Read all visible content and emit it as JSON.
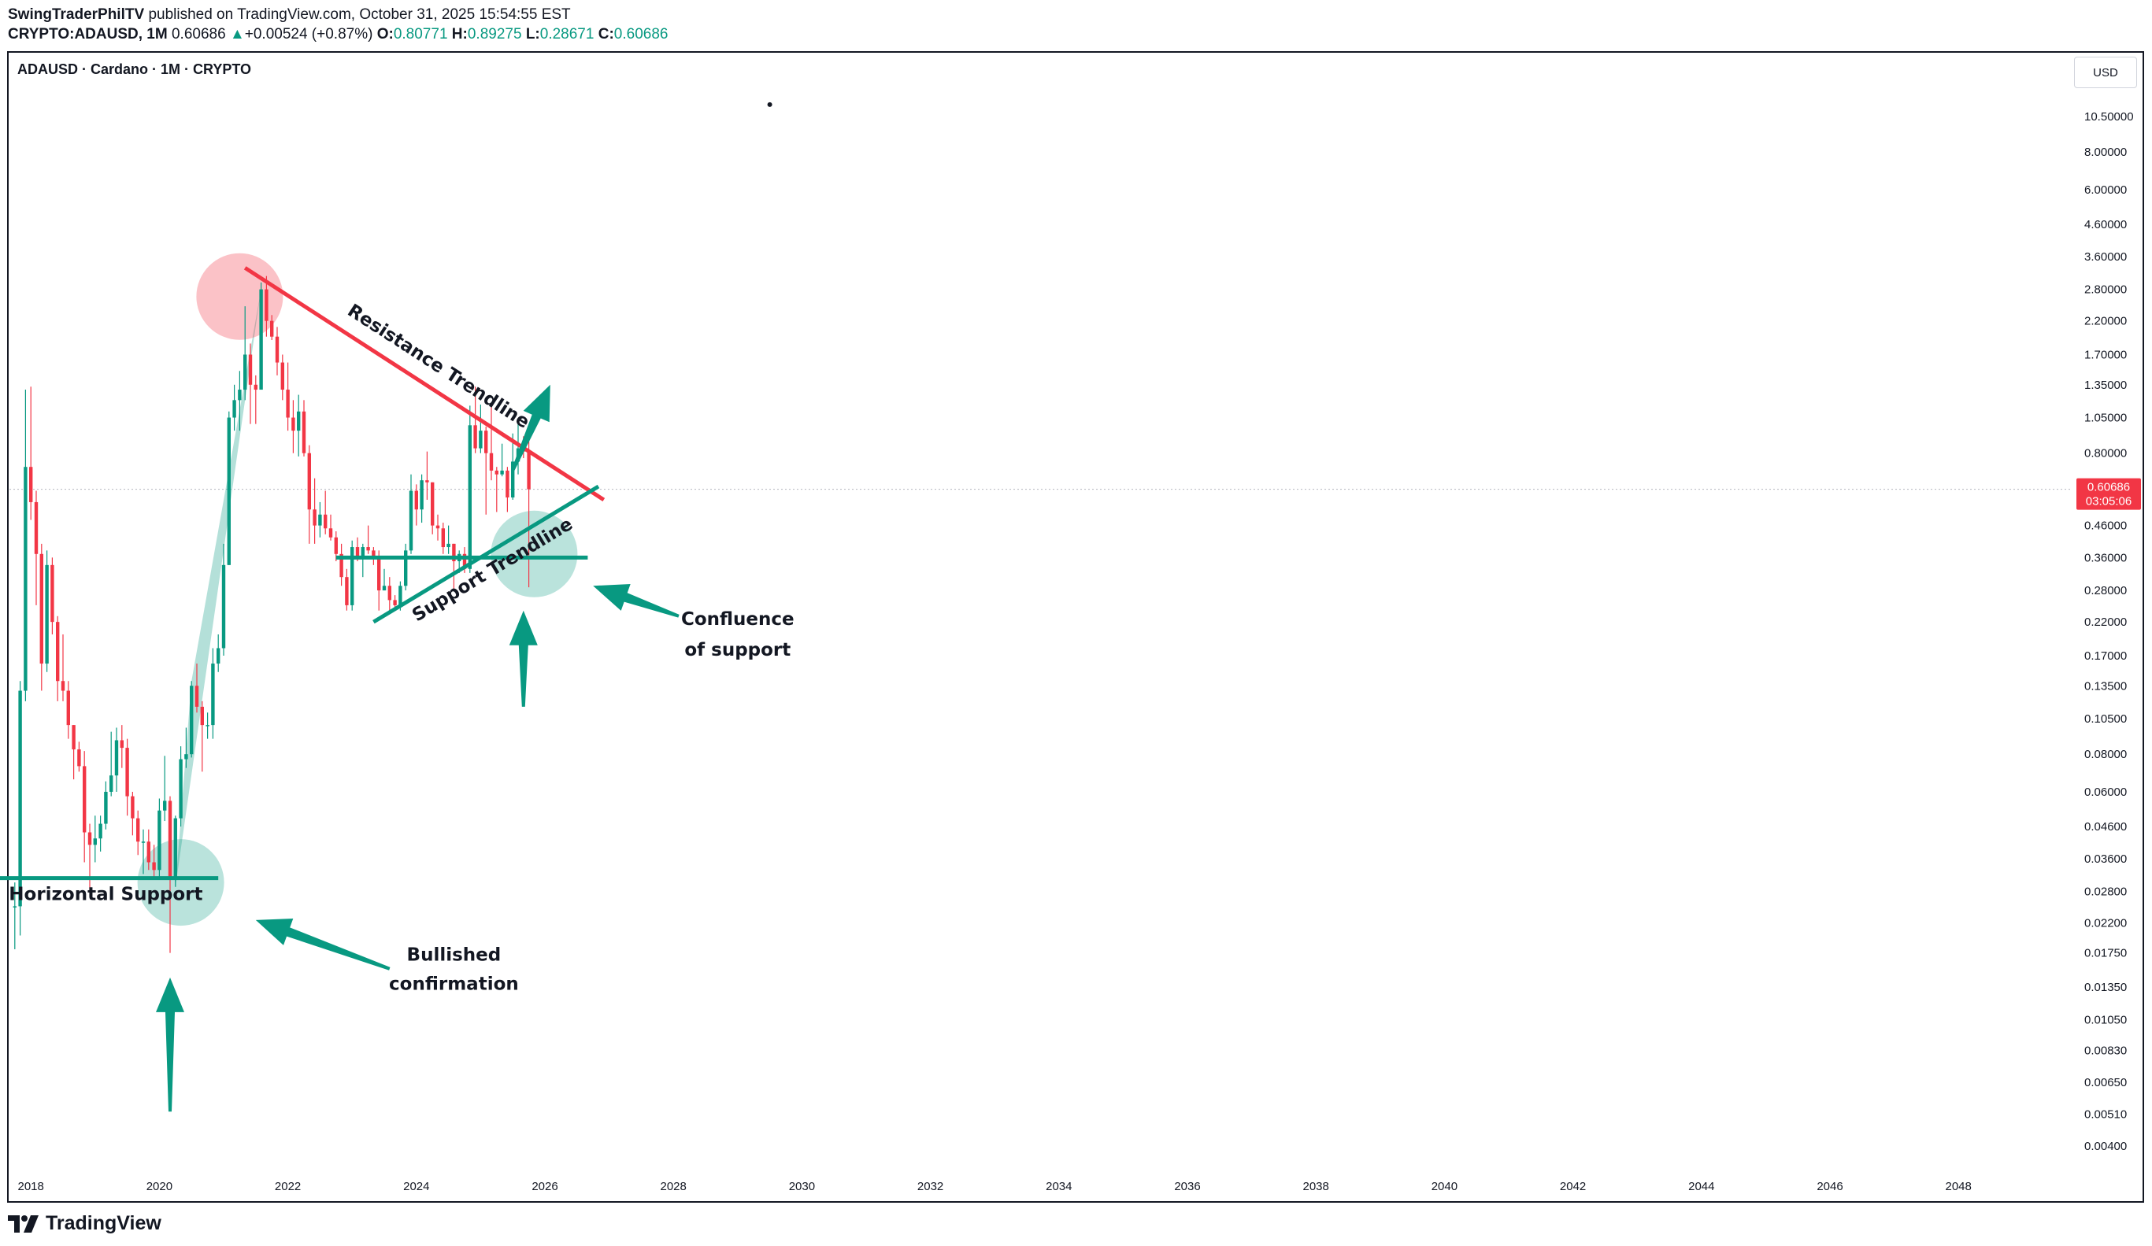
{
  "header": {
    "author": "SwingTraderPhilTV",
    "published": "published on TradingView.com, October 31, 2025 15:54:55 EST",
    "symbol": "CRYPTO:ADAUSD, 1M",
    "last_price": "0.60686",
    "change_arrow": "▲",
    "change": "+0.00524 (+0.87%)",
    "open_label": "O:",
    "open": "0.80771",
    "high_label": "H:",
    "high": "0.89275",
    "low_label": "L:",
    "low": "0.28671",
    "close_label": "C:",
    "close": "0.60686"
  },
  "chart_title": "ADAUSD · Cardano · 1M · CRYPTO",
  "currency_button": "USD",
  "footer": {
    "logo_text": "TradingView",
    "logo_icon": "tradingview-logo-icon"
  },
  "colors": {
    "up": "#089981",
    "down": "#f23645",
    "teal": "#089981",
    "red": "#f23645"
  },
  "chart_data": {
    "type": "candlestick",
    "title": "ADAUSD · Cardano · 1M · CRYPTO",
    "y_scale": "log",
    "ylim": [
      0.0035,
      17
    ],
    "x_range": [
      "2017-09",
      "2049-10"
    ],
    "x_ticks": [
      "2018",
      "2020",
      "2022",
      "2024",
      "2026",
      "2028",
      "2030",
      "2032",
      "2034",
      "2036",
      "2038",
      "2040",
      "2042",
      "2044",
      "2046",
      "2048"
    ],
    "y_ticks": [
      "10.50000",
      "8.00000",
      "6.00000",
      "4.60000",
      "3.60000",
      "2.80000",
      "2.20000",
      "1.70000",
      "1.35000",
      "1.05000",
      "0.80000",
      "0.46000",
      "0.36000",
      "0.28000",
      "0.22000",
      "0.17000",
      "0.13500",
      "0.10500",
      "0.08000",
      "0.06000",
      "0.04600",
      "0.03600",
      "0.02800",
      "0.02200",
      "0.01750",
      "0.01350",
      "0.01050",
      "0.00830",
      "0.00650",
      "0.00510",
      "0.00400"
    ],
    "current_price": {
      "value": "0.60686",
      "countdown": "03:05:06"
    },
    "candles": [
      {
        "d": "2017-10",
        "o": 0.025,
        "h": 0.03,
        "l": 0.018,
        "c": 0.025
      },
      {
        "d": "2017-11",
        "o": 0.025,
        "h": 0.14,
        "l": 0.02,
        "c": 0.13
      },
      {
        "d": "2017-12",
        "o": 0.13,
        "h": 1.3,
        "l": 0.12,
        "c": 0.72
      },
      {
        "d": "2018-01",
        "o": 0.72,
        "h": 1.33,
        "l": 0.48,
        "c": 0.55
      },
      {
        "d": "2018-02",
        "o": 0.55,
        "h": 0.6,
        "l": 0.25,
        "c": 0.37
      },
      {
        "d": "2018-03",
        "o": 0.37,
        "h": 0.4,
        "l": 0.13,
        "c": 0.16
      },
      {
        "d": "2018-04",
        "o": 0.16,
        "h": 0.38,
        "l": 0.15,
        "c": 0.34
      },
      {
        "d": "2018-05",
        "o": 0.34,
        "h": 0.36,
        "l": 0.2,
        "c": 0.22
      },
      {
        "d": "2018-06",
        "o": 0.22,
        "h": 0.23,
        "l": 0.12,
        "c": 0.14
      },
      {
        "d": "2018-07",
        "o": 0.14,
        "h": 0.2,
        "l": 0.12,
        "c": 0.13
      },
      {
        "d": "2018-08",
        "o": 0.13,
        "h": 0.14,
        "l": 0.09,
        "c": 0.1
      },
      {
        "d": "2018-09",
        "o": 0.1,
        "h": 0.1,
        "l": 0.066,
        "c": 0.083
      },
      {
        "d": "2018-10",
        "o": 0.083,
        "h": 0.088,
        "l": 0.07,
        "c": 0.073
      },
      {
        "d": "2018-11",
        "o": 0.073,
        "h": 0.082,
        "l": 0.035,
        "c": 0.044
      },
      {
        "d": "2018-12",
        "o": 0.044,
        "h": 0.047,
        "l": 0.028,
        "c": 0.04
      },
      {
        "d": "2019-01",
        "o": 0.04,
        "h": 0.05,
        "l": 0.035,
        "c": 0.042
      },
      {
        "d": "2019-02",
        "o": 0.042,
        "h": 0.05,
        "l": 0.038,
        "c": 0.047
      },
      {
        "d": "2019-03",
        "o": 0.047,
        "h": 0.065,
        "l": 0.045,
        "c": 0.06
      },
      {
        "d": "2019-04",
        "o": 0.06,
        "h": 0.095,
        "l": 0.058,
        "c": 0.068
      },
      {
        "d": "2019-05",
        "o": 0.068,
        "h": 0.098,
        "l": 0.06,
        "c": 0.089
      },
      {
        "d": "2019-06",
        "o": 0.089,
        "h": 0.1,
        "l": 0.072,
        "c": 0.084
      },
      {
        "d": "2019-07",
        "o": 0.084,
        "h": 0.09,
        "l": 0.05,
        "c": 0.058
      },
      {
        "d": "2019-08",
        "o": 0.058,
        "h": 0.06,
        "l": 0.043,
        "c": 0.049
      },
      {
        "d": "2019-09",
        "o": 0.049,
        "h": 0.052,
        "l": 0.037,
        "c": 0.041
      },
      {
        "d": "2019-10",
        "o": 0.041,
        "h": 0.045,
        "l": 0.032,
        "c": 0.041
      },
      {
        "d": "2019-11",
        "o": 0.041,
        "h": 0.045,
        "l": 0.033,
        "c": 0.035
      },
      {
        "d": "2019-12",
        "o": 0.035,
        "h": 0.04,
        "l": 0.031,
        "c": 0.033
      },
      {
        "d": "2020-01",
        "o": 0.033,
        "h": 0.057,
        "l": 0.031,
        "c": 0.052
      },
      {
        "d": "2020-02",
        "o": 0.052,
        "h": 0.079,
        "l": 0.048,
        "c": 0.056
      },
      {
        "d": "2020-03",
        "o": 0.056,
        "h": 0.058,
        "l": 0.0175,
        "c": 0.031
      },
      {
        "d": "2020-04",
        "o": 0.031,
        "h": 0.05,
        "l": 0.029,
        "c": 0.049
      },
      {
        "d": "2020-05",
        "o": 0.049,
        "h": 0.085,
        "l": 0.046,
        "c": 0.077
      },
      {
        "d": "2020-06",
        "o": 0.077,
        "h": 0.098,
        "l": 0.072,
        "c": 0.08
      },
      {
        "d": "2020-07",
        "o": 0.08,
        "h": 0.14,
        "l": 0.078,
        "c": 0.135
      },
      {
        "d": "2020-08",
        "o": 0.135,
        "h": 0.16,
        "l": 0.11,
        "c": 0.115
      },
      {
        "d": "2020-09",
        "o": 0.115,
        "h": 0.12,
        "l": 0.07,
        "c": 0.1
      },
      {
        "d": "2020-10",
        "o": 0.1,
        "h": 0.11,
        "l": 0.09,
        "c": 0.1
      },
      {
        "d": "2020-11",
        "o": 0.1,
        "h": 0.18,
        "l": 0.09,
        "c": 0.16
      },
      {
        "d": "2020-12",
        "o": 0.16,
        "h": 0.2,
        "l": 0.15,
        "c": 0.18
      },
      {
        "d": "2021-01",
        "o": 0.18,
        "h": 0.4,
        "l": 0.17,
        "c": 0.34
      },
      {
        "d": "2021-02",
        "o": 0.34,
        "h": 1.1,
        "l": 0.34,
        "c": 1.05
      },
      {
        "d": "2021-03",
        "o": 1.05,
        "h": 1.35,
        "l": 0.95,
        "c": 1.2
      },
      {
        "d": "2021-04",
        "o": 1.2,
        "h": 1.5,
        "l": 0.95,
        "c": 1.3
      },
      {
        "d": "2021-05",
        "o": 1.3,
        "h": 2.46,
        "l": 1.2,
        "c": 1.7
      },
      {
        "d": "2021-06",
        "o": 1.7,
        "h": 1.85,
        "l": 1.0,
        "c": 1.35
      },
      {
        "d": "2021-07",
        "o": 1.35,
        "h": 1.45,
        "l": 1.0,
        "c": 1.3
      },
      {
        "d": "2021-08",
        "o": 1.3,
        "h": 2.95,
        "l": 1.3,
        "c": 2.8
      },
      {
        "d": "2021-09",
        "o": 2.8,
        "h": 3.1,
        "l": 1.95,
        "c": 2.2
      },
      {
        "d": "2021-10",
        "o": 2.2,
        "h": 2.3,
        "l": 1.9,
        "c": 1.95
      },
      {
        "d": "2021-11",
        "o": 1.95,
        "h": 2.1,
        "l": 1.45,
        "c": 1.6
      },
      {
        "d": "2021-12",
        "o": 1.6,
        "h": 1.7,
        "l": 1.2,
        "c": 1.3
      },
      {
        "d": "2022-01",
        "o": 1.3,
        "h": 1.6,
        "l": 0.95,
        "c": 1.05
      },
      {
        "d": "2022-02",
        "o": 1.05,
        "h": 1.2,
        "l": 0.8,
        "c": 0.95
      },
      {
        "d": "2022-03",
        "o": 0.95,
        "h": 1.25,
        "l": 0.78,
        "c": 1.1
      },
      {
        "d": "2022-04",
        "o": 1.1,
        "h": 1.2,
        "l": 0.78,
        "c": 0.8
      },
      {
        "d": "2022-05",
        "o": 0.8,
        "h": 0.85,
        "l": 0.4,
        "c": 0.52
      },
      {
        "d": "2022-06",
        "o": 0.52,
        "h": 0.66,
        "l": 0.4,
        "c": 0.46
      },
      {
        "d": "2022-07",
        "o": 0.46,
        "h": 0.55,
        "l": 0.42,
        "c": 0.5
      },
      {
        "d": "2022-08",
        "o": 0.5,
        "h": 0.6,
        "l": 0.43,
        "c": 0.45
      },
      {
        "d": "2022-09",
        "o": 0.45,
        "h": 0.5,
        "l": 0.41,
        "c": 0.42
      },
      {
        "d": "2022-10",
        "o": 0.42,
        "h": 0.44,
        "l": 0.35,
        "c": 0.37
      },
      {
        "d": "2022-11",
        "o": 0.37,
        "h": 0.4,
        "l": 0.29,
        "c": 0.31
      },
      {
        "d": "2022-12",
        "o": 0.31,
        "h": 0.33,
        "l": 0.24,
        "c": 0.25
      },
      {
        "d": "2023-01",
        "o": 0.25,
        "h": 0.41,
        "l": 0.24,
        "c": 0.39
      },
      {
        "d": "2023-02",
        "o": 0.39,
        "h": 0.42,
        "l": 0.35,
        "c": 0.36
      },
      {
        "d": "2023-03",
        "o": 0.36,
        "h": 0.4,
        "l": 0.31,
        "c": 0.39
      },
      {
        "d": "2023-04",
        "o": 0.39,
        "h": 0.46,
        "l": 0.37,
        "c": 0.38
      },
      {
        "d": "2023-05",
        "o": 0.38,
        "h": 0.39,
        "l": 0.34,
        "c": 0.36
      },
      {
        "d": "2023-06",
        "o": 0.36,
        "h": 0.38,
        "l": 0.24,
        "c": 0.28
      },
      {
        "d": "2023-07",
        "o": 0.28,
        "h": 0.33,
        "l": 0.28,
        "c": 0.29
      },
      {
        "d": "2023-08",
        "o": 0.29,
        "h": 0.31,
        "l": 0.24,
        "c": 0.26
      },
      {
        "d": "2023-09",
        "o": 0.26,
        "h": 0.27,
        "l": 0.24,
        "c": 0.25
      },
      {
        "d": "2023-10",
        "o": 0.25,
        "h": 0.3,
        "l": 0.24,
        "c": 0.29
      },
      {
        "d": "2023-11",
        "o": 0.29,
        "h": 0.4,
        "l": 0.28,
        "c": 0.38
      },
      {
        "d": "2023-12",
        "o": 0.38,
        "h": 0.68,
        "l": 0.37,
        "c": 0.6
      },
      {
        "d": "2024-01",
        "o": 0.6,
        "h": 0.63,
        "l": 0.46,
        "c": 0.52
      },
      {
        "d": "2024-02",
        "o": 0.52,
        "h": 0.68,
        "l": 0.47,
        "c": 0.65
      },
      {
        "d": "2024-03",
        "o": 0.65,
        "h": 0.81,
        "l": 0.56,
        "c": 0.64
      },
      {
        "d": "2024-04",
        "o": 0.64,
        "h": 0.64,
        "l": 0.43,
        "c": 0.46
      },
      {
        "d": "2024-05",
        "o": 0.46,
        "h": 0.5,
        "l": 0.41,
        "c": 0.45
      },
      {
        "d": "2024-06",
        "o": 0.45,
        "h": 0.47,
        "l": 0.37,
        "c": 0.39
      },
      {
        "d": "2024-07",
        "o": 0.39,
        "h": 0.46,
        "l": 0.37,
        "c": 0.4
      },
      {
        "d": "2024-08",
        "o": 0.4,
        "h": 0.4,
        "l": 0.28,
        "c": 0.35
      },
      {
        "d": "2024-09",
        "o": 0.35,
        "h": 0.38,
        "l": 0.32,
        "c": 0.37
      },
      {
        "d": "2024-10",
        "o": 0.37,
        "h": 0.39,
        "l": 0.32,
        "c": 0.33
      },
      {
        "d": "2024-11",
        "o": 0.33,
        "h": 1.15,
        "l": 0.32,
        "c": 0.99
      },
      {
        "d": "2024-12",
        "o": 0.99,
        "h": 1.33,
        "l": 0.8,
        "c": 0.83
      },
      {
        "d": "2025-01",
        "o": 0.83,
        "h": 1.16,
        "l": 0.8,
        "c": 0.95
      },
      {
        "d": "2025-02",
        "o": 0.95,
        "h": 0.98,
        "l": 0.5,
        "c": 0.8
      },
      {
        "d": "2025-03",
        "o": 0.8,
        "h": 1.15,
        "l": 0.65,
        "c": 0.7
      },
      {
        "d": "2025-04",
        "o": 0.7,
        "h": 0.72,
        "l": 0.51,
        "c": 0.68
      },
      {
        "d": "2025-05",
        "o": 0.68,
        "h": 0.86,
        "l": 0.67,
        "c": 0.7
      },
      {
        "d": "2025-06",
        "o": 0.7,
        "h": 0.72,
        "l": 0.51,
        "c": 0.57
      },
      {
        "d": "2025-07",
        "o": 0.57,
        "h": 0.93,
        "l": 0.56,
        "c": 0.75
      },
      {
        "d": "2025-08",
        "o": 0.75,
        "h": 1.0,
        "l": 0.68,
        "c": 0.83
      },
      {
        "d": "2025-09",
        "o": 0.83,
        "h": 0.91,
        "l": 0.77,
        "c": 0.81
      },
      {
        "d": "2025-10",
        "o": 0.80771,
        "h": 0.89275,
        "l": 0.28671,
        "c": 0.60686
      }
    ],
    "annotations": {
      "labels": {
        "resistance": "Resistance Trendline",
        "support_trend": "Support Trendline",
        "horizontal": "Horizontal Support",
        "bullish": [
          "Bullished",
          "confirmation"
        ],
        "confluence": [
          "Confluence",
          "of support"
        ]
      },
      "resistance_line": [
        {
          "d": "2021-05",
          "p": 3.3
        },
        {
          "d": "2026-12",
          "p": 0.56
        }
      ],
      "support_trend_line": [
        {
          "d": "2023-05",
          "p": 0.22
        },
        {
          "d": "2026-11",
          "p": 0.62
        }
      ],
      "horizontal_support_2020": {
        "p": 0.031,
        "from": "2017-07",
        "to": "2020-12"
      },
      "horizontal_support_2024": {
        "p": 0.36,
        "from": "2022-10",
        "to": "2026-09"
      },
      "circles": [
        {
          "d": "2021-04",
          "p": 2.65,
          "color": "red"
        },
        {
          "d": "2020-05",
          "p": 0.03,
          "color": "teal"
        },
        {
          "d": "2025-11",
          "p": 0.37,
          "color": "teal"
        }
      ],
      "arrows": [
        {
          "from": {
            "d": "2025-07",
            "p": 0.7
          },
          "to": {
            "d": "2026-02",
            "p": 1.35
          }
        },
        {
          "from": {
            "d": "2025-09",
            "p": 0.115
          },
          "to": {
            "d": "2025-09",
            "p": 0.24
          }
        },
        {
          "from": {
            "d": "2028-02",
            "p": 0.23
          },
          "to": {
            "d": "2026-10",
            "p": 0.29
          }
        },
        {
          "from": {
            "d": "2020-03",
            "p": 0.0052
          },
          "to": {
            "d": "2020-03",
            "p": 0.0145
          }
        },
        {
          "from": {
            "d": "2023-08",
            "p": 0.0155
          },
          "to": {
            "d": "2021-07",
            "p": 0.0225
          }
        }
      ],
      "wedge_polygon": [
        {
          "d": "2020-04",
          "p": 0.029
        },
        {
          "d": "2021-05",
          "p": 1.2
        },
        {
          "d": "2021-08",
          "p": 2.8
        },
        {
          "d": "2020-07",
          "p": 0.14
        }
      ],
      "dot": {
        "d": "2029-07",
        "p": 11.5
      },
      "current_price_line": 0.60686
    }
  }
}
